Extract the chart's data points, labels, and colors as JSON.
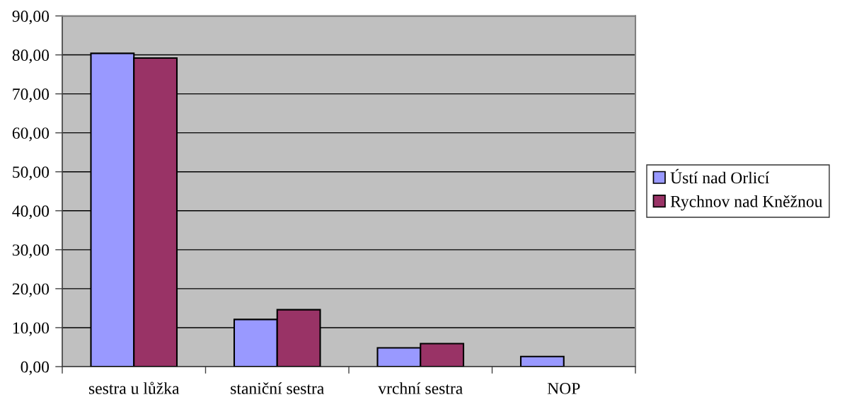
{
  "chart_data": {
    "type": "bar",
    "categories": [
      "sestra u lůžka",
      "staniční sestra",
      "vrchní sestra",
      "NOP"
    ],
    "series": [
      {
        "name": "Ústí nad Orlicí",
        "color": "#9999ff",
        "values": [
          80.4,
          12.1,
          4.8,
          2.6
        ]
      },
      {
        "name": "Rychnov nad Kněžnou",
        "color": "#993366",
        "values": [
          79.2,
          14.6,
          5.9,
          null
        ]
      }
    ],
    "ylim": [
      0,
      90
    ],
    "yticks": [
      {
        "value": 0,
        "label": "0,00"
      },
      {
        "value": 10,
        "label": "10,00"
      },
      {
        "value": 20,
        "label": "20,00"
      },
      {
        "value": 30,
        "label": "30,00"
      },
      {
        "value": 40,
        "label": "40,00"
      },
      {
        "value": 50,
        "label": "50,00"
      },
      {
        "value": 60,
        "label": "60,00"
      },
      {
        "value": 70,
        "label": "70,00"
      },
      {
        "value": 80,
        "label": "80,00"
      },
      {
        "value": 90,
        "label": "90,00"
      }
    ],
    "grid": "y",
    "legend": "right"
  }
}
